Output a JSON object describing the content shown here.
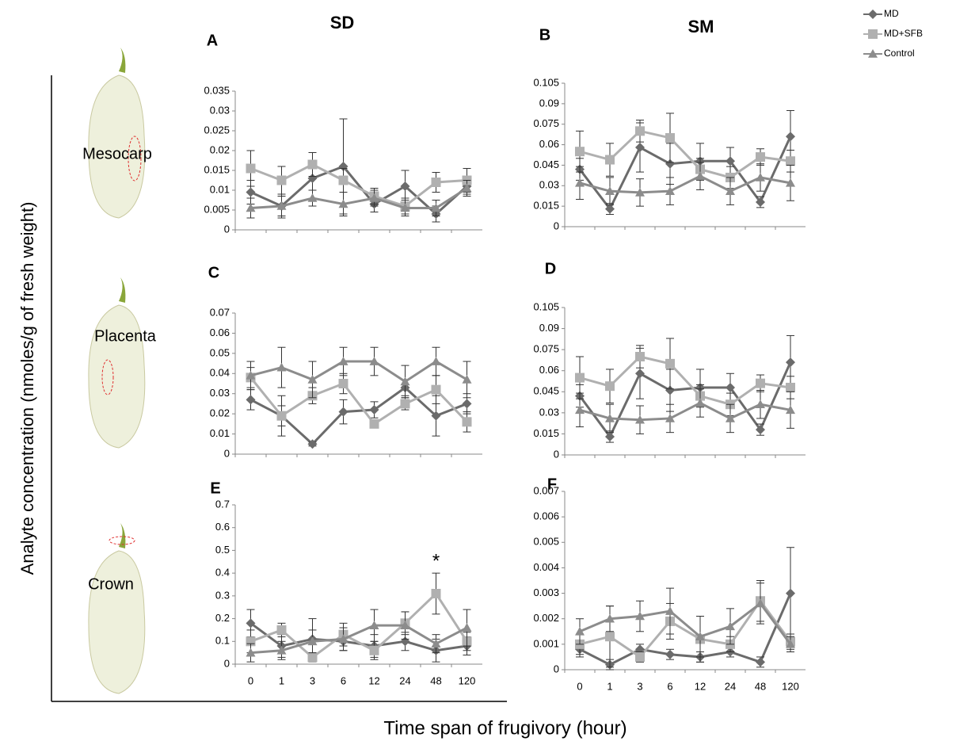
{
  "columns": [
    "SD",
    "SM"
  ],
  "rows": [
    "Mesocarp",
    "Placenta",
    "Crown"
  ],
  "ylabel": "Analyte concentration (nmoles/g of fresh weight)",
  "xlabel": "Time span of frugivory (hour)",
  "chart_data": [
    {
      "type": "line",
      "title": "A",
      "categories": [
        "0",
        "1",
        "3",
        "6",
        "12",
        "24",
        "48",
        "120"
      ],
      "show_xticklabels": false,
      "ylim": [
        0,
        0.035
      ],
      "yticks": [
        0,
        0.005,
        0.01,
        0.015,
        0.02,
        0.025,
        0.03,
        0.035
      ],
      "series": [
        {
          "name": "MD",
          "color": "#6b6b6b",
          "marker": "diamond",
          "values": [
            0.0095,
            0.006,
            0.013,
            0.016,
            0.0065,
            0.011,
            0.004,
            0.011
          ],
          "errors": [
            0.003,
            0.003,
            0.003,
            0.012,
            0.002,
            0.004,
            0.002,
            0.002
          ]
        },
        {
          "name": "MD+SFB",
          "color": "#b0b0b0",
          "marker": "square",
          "values": [
            0.0155,
            0.0125,
            0.0165,
            0.0125,
            0.0085,
            0.006,
            0.012,
            0.0125
          ],
          "errors": [
            0.0045,
            0.0035,
            0.003,
            0.003,
            0.002,
            0.002,
            0.0025,
            0.003
          ]
        },
        {
          "name": "Control",
          "color": "#8c8c8c",
          "marker": "triangle",
          "values": [
            0.0055,
            0.006,
            0.008,
            0.0065,
            0.008,
            0.0055,
            0.0055,
            0.0105
          ],
          "errors": [
            0.0025,
            0.0025,
            0.002,
            0.003,
            0.002,
            0.002,
            0.002,
            0.002
          ]
        }
      ]
    },
    {
      "type": "line",
      "title": "B",
      "categories": [
        "0",
        "1",
        "3",
        "6",
        "12",
        "24",
        "48",
        "120"
      ],
      "show_xticklabels": false,
      "ylim": [
        0,
        0.105
      ],
      "yticks": [
        0,
        0.015,
        0.03,
        0.045,
        0.06,
        0.075,
        0.09,
        0.105
      ],
      "series": [
        {
          "name": "MD",
          "color": "#6b6b6b",
          "marker": "diamond",
          "values": [
            0.042,
            0.013,
            0.058,
            0.046,
            0.048,
            0.048,
            0.018,
            0.066
          ],
          "errors": [
            0.008,
            0.004,
            0.018,
            0.015,
            0.013,
            0.01,
            0.004,
            0.019
          ]
        },
        {
          "name": "MD+SFB",
          "color": "#b0b0b0",
          "marker": "square",
          "values": [
            0.055,
            0.049,
            0.07,
            0.065,
            0.042,
            0.036,
            0.051,
            0.048
          ],
          "errors": [
            0.015,
            0.012,
            0.008,
            0.018,
            0.008,
            0.008,
            0.006,
            0.008
          ]
        },
        {
          "name": "Control",
          "color": "#8c8c8c",
          "marker": "triangle",
          "values": [
            0.032,
            0.026,
            0.025,
            0.026,
            0.037,
            0.026,
            0.036,
            0.032
          ],
          "errors": [
            0.012,
            0.01,
            0.01,
            0.01,
            0.01,
            0.01,
            0.01,
            0.013
          ]
        }
      ]
    },
    {
      "type": "line",
      "title": "C",
      "categories": [
        "0",
        "1",
        "3",
        "6",
        "12",
        "24",
        "48",
        "120"
      ],
      "show_xticklabels": false,
      "ylim": [
        0,
        0.07
      ],
      "yticks": [
        0,
        0.01,
        0.02,
        0.03,
        0.04,
        0.05,
        0.06,
        0.07
      ],
      "series": [
        {
          "name": "MD",
          "color": "#6b6b6b",
          "marker": "diamond",
          "values": [
            0.027,
            0.019,
            0.005,
            0.021,
            0.022,
            0.033,
            0.019,
            0.025
          ],
          "errors": [
            0.005,
            0.005,
            0.001,
            0.006,
            0.004,
            0.004,
            0.01,
            0.005
          ]
        },
        {
          "name": "MD+SFB",
          "color": "#b0b0b0",
          "marker": "square",
          "values": [
            0.038,
            0.019,
            0.029,
            0.035,
            0.015,
            0.025,
            0.032,
            0.016
          ],
          "errors": [
            0.005,
            0.01,
            0.004,
            0.005,
            0.002,
            0.003,
            0.007,
            0.005
          ]
        },
        {
          "name": "Control",
          "color": "#8c8c8c",
          "marker": "triangle",
          "values": [
            0.039,
            0.043,
            0.037,
            0.046,
            0.046,
            0.036,
            0.046,
            0.037
          ],
          "errors": [
            0.007,
            0.01,
            0.009,
            0.007,
            0.007,
            0.008,
            0.007,
            0.009
          ]
        }
      ]
    },
    {
      "type": "line",
      "title": "D",
      "categories": [
        "0",
        "1",
        "3",
        "6",
        "12",
        "24",
        "48",
        "120"
      ],
      "show_xticklabels": false,
      "ylim": [
        0,
        0.105
      ],
      "yticks": [
        0,
        0.015,
        0.03,
        0.045,
        0.06,
        0.075,
        0.09,
        0.105
      ],
      "series": [
        {
          "name": "MD",
          "color": "#6b6b6b",
          "marker": "diamond",
          "values": [
            0.042,
            0.013,
            0.058,
            0.046,
            0.048,
            0.048,
            0.018,
            0.066
          ],
          "errors": [
            0.008,
            0.004,
            0.018,
            0.015,
            0.013,
            0.01,
            0.004,
            0.019
          ]
        },
        {
          "name": "MD+SFB",
          "color": "#b0b0b0",
          "marker": "square",
          "values": [
            0.055,
            0.049,
            0.07,
            0.065,
            0.042,
            0.036,
            0.051,
            0.048
          ],
          "errors": [
            0.015,
            0.012,
            0.008,
            0.018,
            0.008,
            0.008,
            0.006,
            0.008
          ]
        },
        {
          "name": "Control",
          "color": "#8c8c8c",
          "marker": "triangle",
          "values": [
            0.032,
            0.026,
            0.025,
            0.026,
            0.037,
            0.026,
            0.036,
            0.032
          ],
          "errors": [
            0.012,
            0.01,
            0.01,
            0.01,
            0.01,
            0.01,
            0.01,
            0.013
          ]
        }
      ]
    },
    {
      "type": "line",
      "title": "E",
      "categories": [
        "0",
        "1",
        "3",
        "6",
        "12",
        "24",
        "48",
        "120"
      ],
      "show_xticklabels": true,
      "ylim": [
        0,
        0.7
      ],
      "yticks": [
        0,
        0.1,
        0.2,
        0.3,
        0.4,
        0.5,
        0.6,
        0.7
      ],
      "annotations": [
        {
          "text": "*",
          "x": "48"
        }
      ],
      "series": [
        {
          "name": "MD",
          "color": "#6b6b6b",
          "marker": "diamond",
          "values": [
            0.18,
            0.08,
            0.11,
            0.1,
            0.08,
            0.1,
            0.06,
            0.08
          ],
          "errors": [
            0.06,
            0.05,
            0.09,
            0.04,
            0.05,
            0.04,
            0.05,
            0.04
          ]
        },
        {
          "name": "MD+SFB",
          "color": "#b0b0b0",
          "marker": "square",
          "values": [
            0.1,
            0.15,
            0.03,
            0.13,
            0.06,
            0.18,
            0.31,
            0.1
          ],
          "errors": [
            0.05,
            0.03,
            0.02,
            0.05,
            0.04,
            0.05,
            0.09,
            0.04
          ]
        },
        {
          "name": "Control",
          "color": "#8c8c8c",
          "marker": "triangle",
          "values": [
            0.05,
            0.06,
            0.1,
            0.11,
            0.17,
            0.17,
            0.09,
            0.16
          ],
          "errors": [
            0.04,
            0.04,
            0.05,
            0.05,
            0.07,
            0.06,
            0.04,
            0.08
          ]
        }
      ]
    },
    {
      "type": "line",
      "title": "F",
      "categories": [
        "0",
        "1",
        "3",
        "6",
        "12",
        "24",
        "48",
        "120"
      ],
      "show_xticklabels": true,
      "ylim": [
        0,
        0.007
      ],
      "yticks": [
        0,
        0.001,
        0.002,
        0.003,
        0.004,
        0.005,
        0.006,
        0.007
      ],
      "series": [
        {
          "name": "MD",
          "color": "#6b6b6b",
          "marker": "diamond",
          "values": [
            0.0008,
            0.0002,
            0.0008,
            0.0006,
            0.0005,
            0.0007,
            0.0003,
            0.003
          ],
          "errors": [
            0.0003,
            0.0002,
            0.0002,
            0.0002,
            0.0002,
            0.0002,
            0.0002,
            0.0018
          ]
        },
        {
          "name": "MD+SFB",
          "color": "#b0b0b0",
          "marker": "square",
          "values": [
            0.001,
            0.0013,
            0.0005,
            0.0019,
            0.0012,
            0.001,
            0.0027,
            0.0011
          ],
          "errors": [
            0.0004,
            0.0012,
            0.0002,
            0.0007,
            0.0009,
            0.0003,
            0.0008,
            0.0003
          ]
        },
        {
          "name": "Control",
          "color": "#8c8c8c",
          "marker": "triangle",
          "values": [
            0.0015,
            0.002,
            0.0021,
            0.0023,
            0.0013,
            0.0017,
            0.0026,
            0.001
          ],
          "errors": [
            0.0005,
            0.0005,
            0.0006,
            0.0009,
            0.0008,
            0.0007,
            0.0008,
            0.0003
          ]
        }
      ]
    }
  ]
}
